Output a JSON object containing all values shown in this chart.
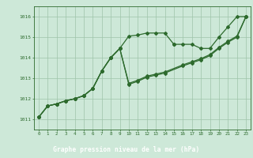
{
  "title": "Graphe pression niveau de la mer (hPa)",
  "hours": [
    0,
    1,
    2,
    3,
    4,
    5,
    6,
    7,
    8,
    9,
    10,
    11,
    12,
    13,
    14,
    15,
    16,
    17,
    18,
    19,
    20,
    21,
    22,
    23
  ],
  "line1_x": [
    0,
    1,
    2,
    3,
    4,
    5,
    6,
    7,
    8,
    9,
    10,
    11,
    12,
    13,
    14,
    15
  ],
  "line1_y": [
    1011.1,
    1011.65,
    1011.75,
    1011.9,
    1012.0,
    1012.15,
    1012.5,
    1013.35,
    1014.0,
    1014.45,
    1015.05,
    1015.1,
    1015.2,
    1015.2,
    1015.2,
    1014.65
  ],
  "line2_x": [
    0,
    1,
    2,
    3,
    4,
    5,
    6,
    7,
    8,
    9,
    10,
    11,
    12,
    13,
    14,
    16,
    17,
    18,
    19,
    20,
    21,
    22,
    23
  ],
  "line2_y": [
    1011.1,
    1011.65,
    1011.75,
    1011.9,
    1012.0,
    1012.15,
    1012.5,
    1013.35,
    1014.0,
    1014.45,
    1012.7,
    1012.85,
    1013.05,
    1013.15,
    1013.25,
    1013.6,
    1013.75,
    1013.9,
    1014.1,
    1014.45,
    1014.75,
    1015.0,
    1016.0
  ],
  "line3_x": [
    0,
    1,
    2,
    3,
    4,
    5,
    6,
    7,
    8,
    9,
    10,
    11,
    12,
    13,
    14,
    16,
    17,
    18,
    19,
    20,
    21,
    22,
    23
  ],
  "line3_y": [
    1011.1,
    1011.65,
    1011.75,
    1011.9,
    1012.0,
    1012.15,
    1012.5,
    1013.35,
    1014.0,
    1014.45,
    1012.75,
    1012.9,
    1013.1,
    1013.2,
    1013.3,
    1013.65,
    1013.8,
    1013.95,
    1014.15,
    1014.5,
    1014.8,
    1015.05,
    1016.0
  ],
  "line_upper_x": [
    15,
    16,
    17,
    18,
    19,
    20,
    21,
    22,
    23
  ],
  "line_upper_y": [
    1014.65,
    1014.65,
    1014.65,
    1014.45,
    1014.45,
    1015.0,
    1015.5,
    1016.0,
    1016.0
  ],
  "ylim": [
    1010.5,
    1016.5
  ],
  "yticks": [
    1011,
    1012,
    1013,
    1014,
    1015,
    1016
  ],
  "line_color": "#2d6a2d",
  "bg_color": "#cde8d8",
  "grid_color": "#9ec4aa",
  "title_bg": "#3a7a3a",
  "title_color": "#ffffff"
}
